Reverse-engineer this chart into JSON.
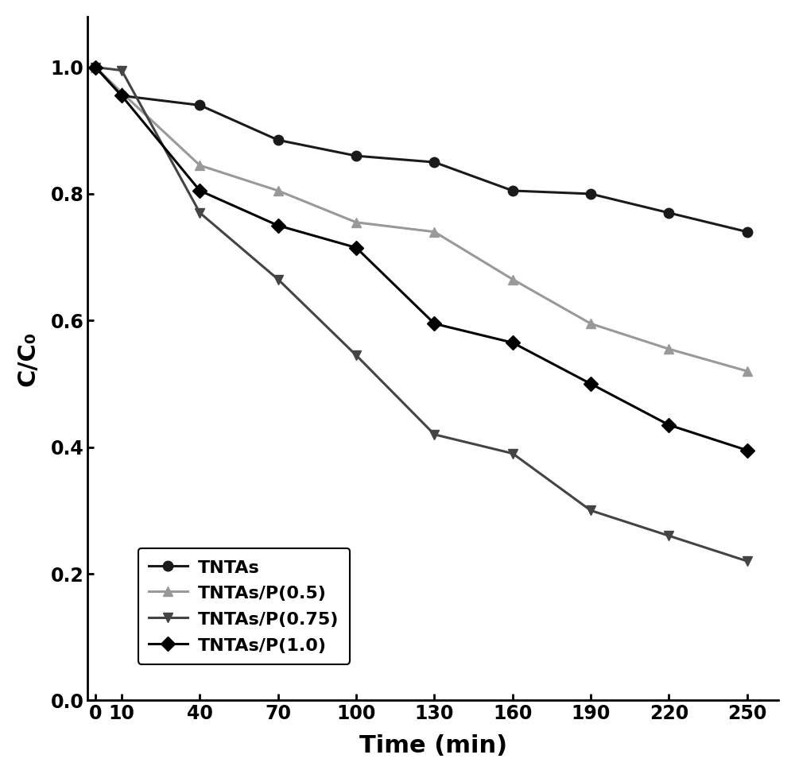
{
  "time": [
    0,
    10,
    40,
    70,
    100,
    130,
    160,
    190,
    220,
    250
  ],
  "TNTAs": [
    1.0,
    0.955,
    0.94,
    0.885,
    0.86,
    0.85,
    0.805,
    0.8,
    0.77,
    0.74
  ],
  "TNTAs_P05": [
    1.0,
    0.96,
    0.845,
    0.805,
    0.755,
    0.74,
    0.665,
    0.595,
    0.555,
    0.52
  ],
  "TNTAs_P075": [
    1.0,
    0.995,
    0.77,
    0.665,
    0.545,
    0.42,
    0.39,
    0.3,
    0.26,
    0.22
  ],
  "TNTAs_P10": [
    1.0,
    0.955,
    0.805,
    0.75,
    0.715,
    0.595,
    0.565,
    0.5,
    0.435,
    0.395
  ],
  "labels": [
    "TNTAs",
    "TNTAs/P(0.5)",
    "TNTAs/P(0.75)",
    "TNTAs/P(1.0)"
  ],
  "colors": [
    "#1a1a1a",
    "#999999",
    "#444444",
    "#000000"
  ],
  "markers": [
    "o",
    "^",
    "v",
    "D"
  ],
  "xlabel": "Time (min)",
  "ylabel": "C/C₀",
  "xlim": [
    -3,
    262
  ],
  "ylim": [
    0.0,
    1.08
  ],
  "xticks": [
    0,
    10,
    40,
    70,
    100,
    130,
    160,
    190,
    220,
    250
  ],
  "yticks": [
    0.0,
    0.2,
    0.4,
    0.6,
    0.8,
    1.0
  ],
  "legend_loc": "lower left",
  "figsize": [
    10.0,
    9.74
  ],
  "dpi": 100,
  "linewidth": 2.2,
  "markersize": 9
}
